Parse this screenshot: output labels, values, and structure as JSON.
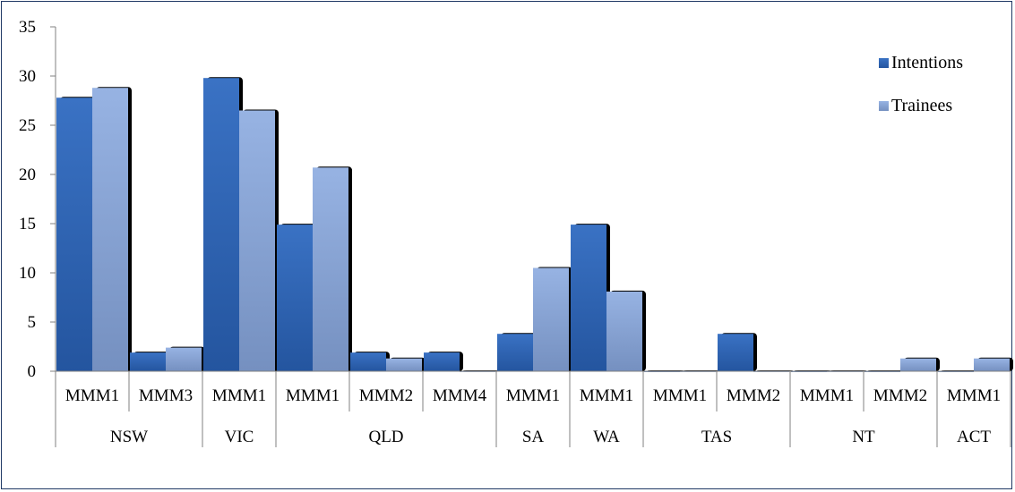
{
  "chart_data": {
    "type": "bar",
    "title": "",
    "xlabel": "",
    "ylabel": "",
    "ylim": [
      0,
      35
    ],
    "yticks": [
      0,
      5,
      10,
      15,
      20,
      25,
      30,
      35
    ],
    "grid": false,
    "legend_position": "top-right",
    "categories": [
      {
        "group": "NSW",
        "label": "MMM1"
      },
      {
        "group": "NSW",
        "label": "MMM3"
      },
      {
        "group": "VIC",
        "label": "MMM1"
      },
      {
        "group": "QLD",
        "label": "MMM1"
      },
      {
        "group": "QLD",
        "label": "MMM2"
      },
      {
        "group": "QLD",
        "label": "MMM4"
      },
      {
        "group": "SA",
        "label": "MMM1"
      },
      {
        "group": "WA",
        "label": "MMM1"
      },
      {
        "group": "TAS",
        "label": "MMM1"
      },
      {
        "group": "TAS",
        "label": "MMM2"
      },
      {
        "group": "NT",
        "label": "MMM1"
      },
      {
        "group": "NT",
        "label": "MMM2"
      },
      {
        "group": "ACT",
        "label": "MMM1"
      }
    ],
    "groups": [
      "NSW",
      "VIC",
      "QLD",
      "SA",
      "WA",
      "TAS",
      "NT",
      "ACT"
    ],
    "series": [
      {
        "name": "Intentions",
        "color": "#2e64b4",
        "values": [
          27.8,
          1.9,
          29.8,
          14.9,
          1.9,
          1.9,
          3.8,
          14.9,
          0,
          3.8,
          0,
          0,
          0
        ]
      },
      {
        "name": "Trainees",
        "color": "#8ba6d6",
        "values": [
          28.8,
          2.4,
          26.5,
          20.7,
          1.3,
          0,
          10.5,
          8.1,
          0,
          0,
          0,
          1.3,
          1.3
        ]
      }
    ]
  }
}
